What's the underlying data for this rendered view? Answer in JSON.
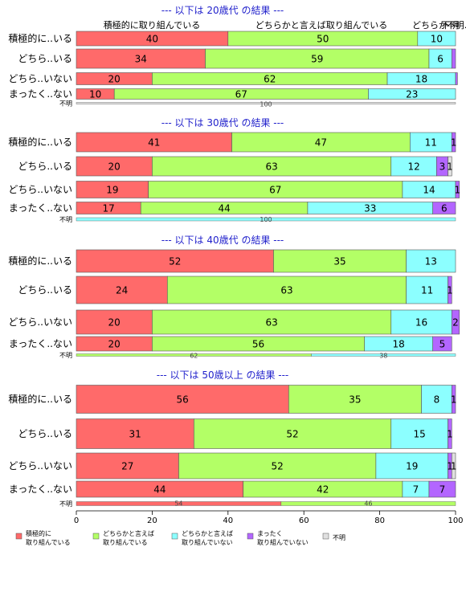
{
  "chart_data": {
    "type": "bar",
    "orientation": "horizontal",
    "stacked": true,
    "xlim": [
      0,
      100
    ],
    "x_ticks": [
      "0",
      "20",
      "40",
      "60",
      "80",
      "100"
    ],
    "categories": [
      "積極的に..いる",
      "どちら..いる",
      "どちら..いない",
      "まったく..ない",
      "不明"
    ],
    "series_names": [
      "積極的に取り組んでいる",
      "どちらかと言えば取り組んでいる",
      "どちらかと言えば取り組んでいない",
      "まったく取り組んでいない",
      "不明"
    ],
    "top_legend": [
      "積極的に取り組んでいる",
      "どちらかと言えば取り組んでいる",
      "どちらか",
      "不明",
      "不明..."
    ],
    "legend": [
      {
        "line1": "積極的に",
        "line2": "取り組んでいる",
        "color": "#ff6a6a"
      },
      {
        "line1": "どちらかと言えば",
        "line2": "取り組んでいる",
        "color": "#b3ff66"
      },
      {
        "line1": "どちらかと言えば",
        "line2": "取り組んでいない",
        "color": "#8cffff"
      },
      {
        "line1": "まったく",
        "line2": "取り組んでいない",
        "color": "#b366ff"
      },
      {
        "line1": "不明",
        "line2": "",
        "color": "#e0e0e0"
      }
    ],
    "colors": [
      "#ff6a6a",
      "#b3ff66",
      "#8cffff",
      "#b366ff",
      "#e0e0e0"
    ],
    "panels": [
      {
        "title": "--- 以下は 20歳代 の結果 ---",
        "rows": [
          {
            "values": [
              40,
              50,
              10,
              0,
              0
            ],
            "labels": [
              "40",
              "50",
              "10",
              "",
              ""
            ]
          },
          {
            "values": [
              34,
              59,
              6,
              1,
              0
            ],
            "labels": [
              "34",
              "59",
              "6",
              "",
              ""
            ]
          },
          {
            "values": [
              20,
              62,
              18,
              0.5,
              0
            ],
            "labels": [
              "20",
              "62",
              "18",
              "",
              ""
            ]
          },
          {
            "values": [
              10,
              67,
              23,
              0,
              0
            ],
            "labels": [
              "10",
              "67",
              "23",
              "",
              ""
            ]
          },
          {
            "values": [
              0,
              0,
              0,
              0,
              100
            ],
            "labels": [
              "",
              "",
              "",
              "",
              "100"
            ]
          }
        ]
      },
      {
        "title": "--- 以下は 30歳代 の結果 ---",
        "rows": [
          {
            "values": [
              41,
              47,
              11,
              1,
              0
            ],
            "labels": [
              "41",
              "47",
              "11",
              "1",
              ""
            ]
          },
          {
            "values": [
              20,
              63,
              12,
              3,
              1
            ],
            "labels": [
              "20",
              "63",
              "12",
              "3",
              "1"
            ]
          },
          {
            "values": [
              19,
              67,
              14,
              1,
              0
            ],
            "labels": [
              "19",
              "67",
              "14",
              "1",
              ""
            ]
          },
          {
            "values": [
              17,
              44,
              33,
              6,
              0
            ],
            "labels": [
              "17",
              "44",
              "33",
              "6",
              ""
            ]
          },
          {
            "values": [
              0,
              0,
              100,
              0,
              0
            ],
            "labels": [
              "",
              "",
              "100",
              "",
              ""
            ]
          }
        ]
      },
      {
        "title": "--- 以下は 40歳代 の結果 ---",
        "rows": [
          {
            "values": [
              52,
              35,
              13,
              0,
              0
            ],
            "labels": [
              "52",
              "35",
              "13",
              "",
              ""
            ]
          },
          {
            "values": [
              24,
              63,
              11,
              1,
              0
            ],
            "labels": [
              "24",
              "63",
              "11",
              "1",
              ""
            ]
          },
          {
            "values": [
              20,
              63,
              16,
              2,
              0
            ],
            "labels": [
              "20",
              "63",
              "16",
              "2",
              ""
            ]
          },
          {
            "values": [
              20,
              56,
              18,
              5,
              0
            ],
            "labels": [
              "20",
              "56",
              "18",
              "5",
              ""
            ]
          },
          {
            "values": [
              0,
              62,
              38,
              0,
              0
            ],
            "labels": [
              "",
              "62",
              "38",
              "",
              ""
            ]
          }
        ]
      },
      {
        "title": "--- 以下は 50歳以上 の結果 ---",
        "rows": [
          {
            "values": [
              56,
              35,
              8,
              1,
              0
            ],
            "labels": [
              "56",
              "35",
              "8",
              "1",
              ""
            ]
          },
          {
            "values": [
              31,
              52,
              15,
              1,
              0
            ],
            "labels": [
              "31",
              "52",
              "15",
              "1",
              ""
            ]
          },
          {
            "values": [
              27,
              52,
              19,
              1,
              1
            ],
            "labels": [
              "27",
              "52",
              "19",
              "1",
              "1"
            ]
          },
          {
            "values": [
              44,
              42,
              7,
              7,
              0
            ],
            "labels": [
              "44",
              "42",
              "7",
              "7",
              ""
            ]
          },
          {
            "values": [
              54,
              46,
              0,
              0,
              0
            ],
            "labels": [
              "54",
              "46",
              "",
              "",
              ""
            ]
          }
        ]
      }
    ]
  }
}
